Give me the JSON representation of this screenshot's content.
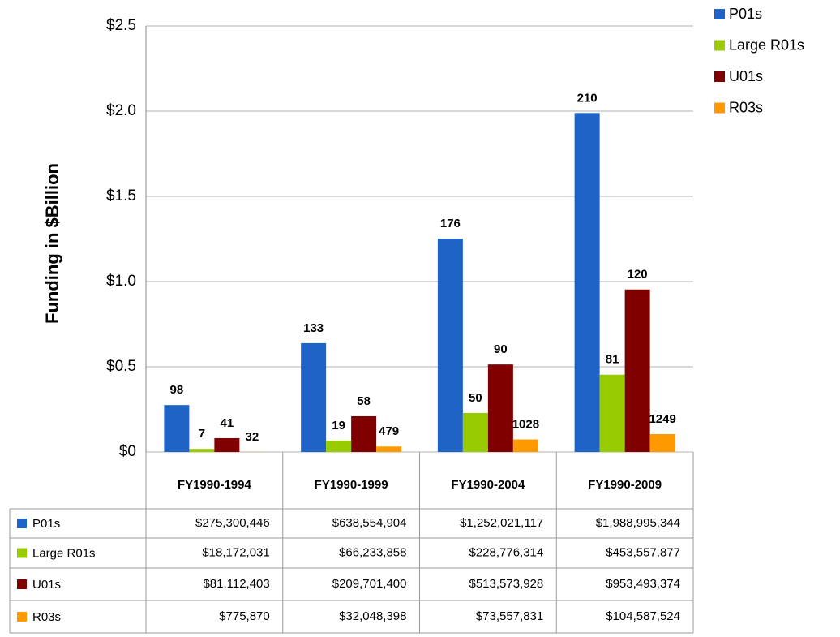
{
  "chart_data": {
    "type": "bar",
    "y_label": "Funding in $Billion",
    "categories": [
      "FY1990-1994",
      "FY1990-1999",
      "FY1990-2004",
      "FY1990-2009"
    ],
    "ylim": [
      0,
      2.5
    ],
    "yticks": [
      {
        "value": 0,
        "label": "$0"
      },
      {
        "value": 0.5,
        "label": "$0.5"
      },
      {
        "value": 1.0,
        "label": "$1.0"
      },
      {
        "value": 1.5,
        "label": "$1.5"
      },
      {
        "value": 2.0,
        "label": "$2.0"
      },
      {
        "value": 2.5,
        "label": "$2.5"
      }
    ],
    "grid": true,
    "legend": "top-right",
    "series": [
      {
        "name": "P01s",
        "color": "#1f63c6",
        "values": [
          0.275300446,
          0.638554904,
          1.252021117,
          1.988995344
        ],
        "value_labels": [
          "$275,300,446",
          "$638,554,904",
          "$1,252,021,117",
          "$1,988,995,344"
        ],
        "counts": [
          98,
          133,
          176,
          210
        ]
      },
      {
        "name": "Large R01s",
        "color": "#99cc00",
        "values": [
          0.018172031,
          0.066233858,
          0.228776314,
          0.453557877
        ],
        "value_labels": [
          "$18,172,031",
          "$66,233,858",
          "$228,776,314",
          "$453,557,877"
        ],
        "counts": [
          7,
          19,
          50,
          81
        ]
      },
      {
        "name": "U01s",
        "color": "#800000",
        "values": [
          0.081112403,
          0.2097014,
          0.513573928,
          0.953493374
        ],
        "value_labels": [
          "$81,112,403",
          "$209,701,400",
          "$513,573,928",
          "$953,493,374"
        ],
        "counts": [
          41,
          58,
          90,
          120
        ]
      },
      {
        "name": "R03s",
        "color": "#ff9900",
        "values": [
          0.00077587,
          0.032048398,
          0.073557831,
          0.104587524
        ],
        "value_labels": [
          "$775,870",
          "$32,048,398",
          "$73,557,831",
          "$104,587,524"
        ],
        "counts": [
          32,
          479,
          1028,
          1249
        ]
      }
    ]
  }
}
